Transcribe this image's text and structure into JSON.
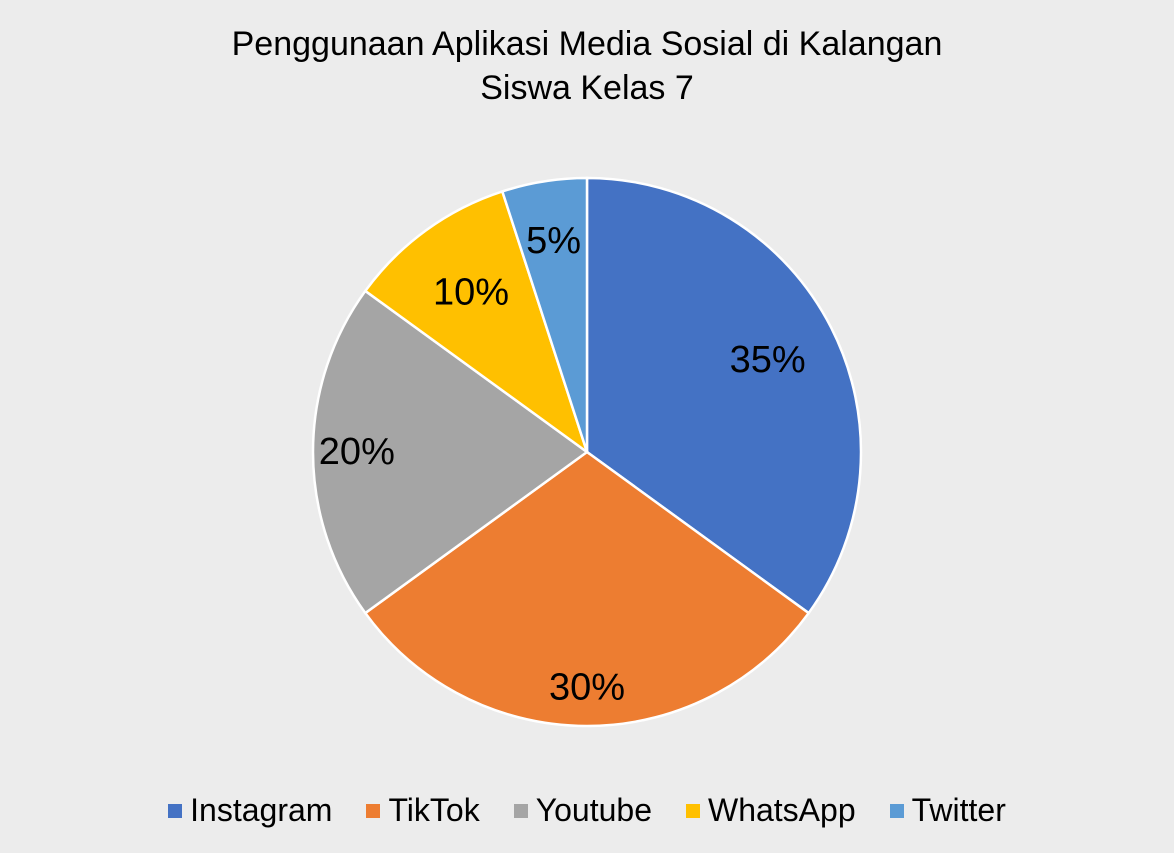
{
  "chart_data": {
    "type": "pie",
    "title": "Penggunaan Aplikasi Media Sosial di Kalangan Siswa Kelas 7",
    "title_lines": [
      "Penggunaan Aplikasi Media Sosial di Kalangan",
      "Siswa Kelas 7"
    ],
    "categories": [
      "Instagram",
      "TikTok",
      "Youtube",
      "WhatsApp",
      "Twitter"
    ],
    "values": [
      35,
      30,
      20,
      10,
      5
    ],
    "labels": [
      "35%",
      "30%",
      "20%",
      "10%",
      "5%"
    ],
    "colors": [
      "#4472c4",
      "#ed7d31",
      "#a5a5a5",
      "#ffc000",
      "#5b9bd5"
    ],
    "legend_position": "bottom"
  }
}
